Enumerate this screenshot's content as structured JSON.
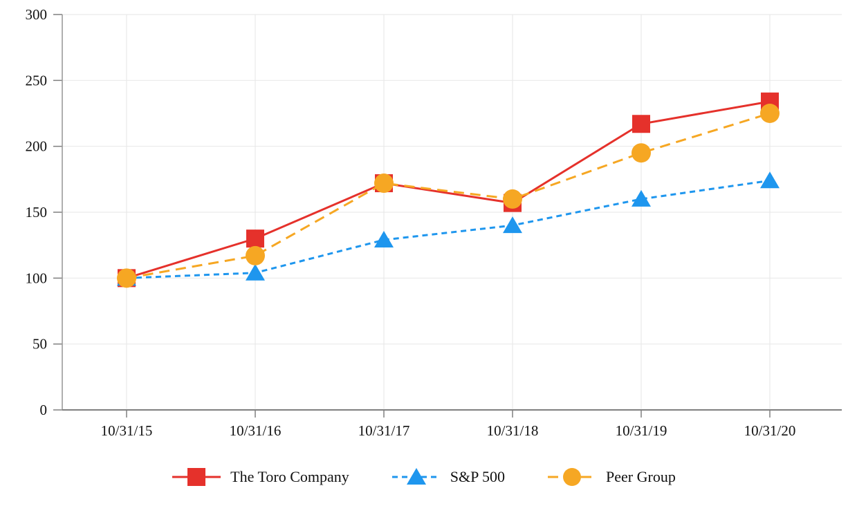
{
  "chart_data": {
    "type": "line",
    "title": "",
    "xlabel": "",
    "ylabel": "",
    "categories": [
      "10/31/15",
      "10/31/16",
      "10/31/17",
      "10/31/18",
      "10/31/19",
      "10/31/20"
    ],
    "y_ticks": [
      0,
      50,
      100,
      150,
      200,
      250,
      300
    ],
    "ylim": [
      0,
      300
    ],
    "grid": "both",
    "legend_position": "bottom",
    "series": [
      {
        "name": "The Toro Company",
        "color": "#E5312B",
        "line_style": "solid",
        "marker": "square",
        "values": [
          100,
          130,
          172,
          157,
          217,
          234
        ]
      },
      {
        "name": "S&P 500",
        "color": "#1E96EE",
        "line_style": "dashed-short",
        "marker": "triangle",
        "values": [
          100,
          104,
          129,
          140,
          160,
          174
        ]
      },
      {
        "name": "Peer Group",
        "color": "#F6A723",
        "line_style": "dashed-long",
        "marker": "circle",
        "values": [
          100,
          117,
          172,
          160,
          195,
          225
        ]
      }
    ],
    "colors": {
      "grid": "#E9E9E9",
      "y_axis": "#9B9B9B",
      "x_axis": "#7F7F7F",
      "tick": "#7F7F7F",
      "label_text": "#111111"
    }
  }
}
